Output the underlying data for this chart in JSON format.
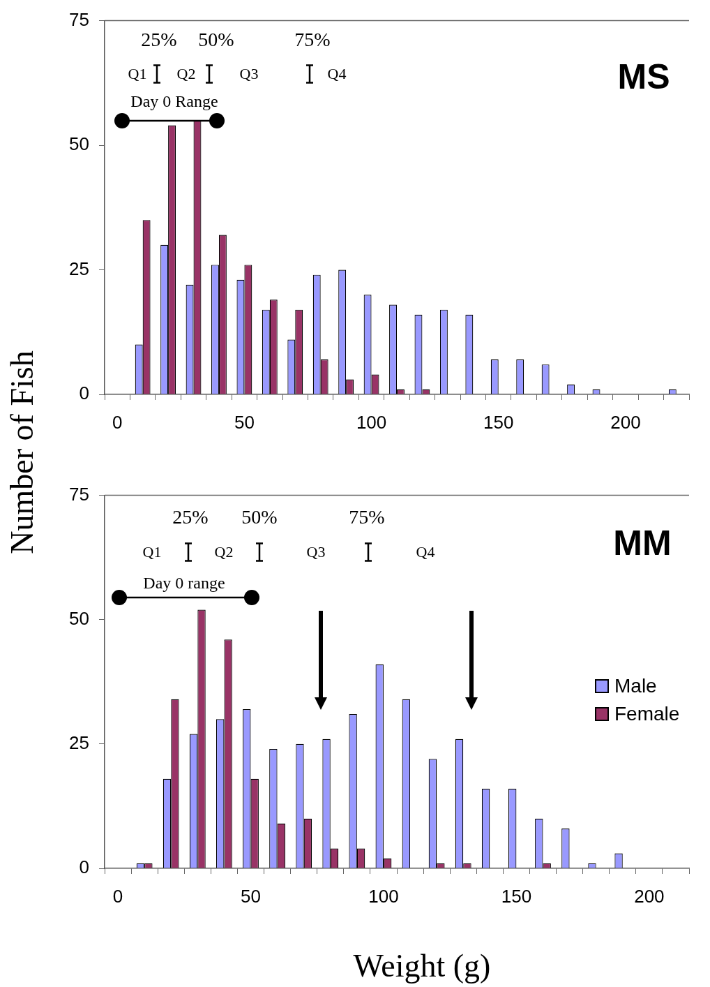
{
  "chart_data": [
    {
      "type": "bar",
      "title": "MS",
      "ylabel": "Number of Fish",
      "categories": [
        "0",
        null,
        null,
        null,
        null,
        "50",
        null,
        null,
        null,
        null,
        "100",
        null,
        null,
        null,
        null,
        "150",
        null,
        null,
        null,
        null,
        "200",
        null,
        null
      ],
      "series": [
        {
          "color": "#9999ff",
          "values": [
            0,
            10,
            30,
            22,
            26,
            23,
            17,
            11,
            24,
            25,
            20,
            18,
            16,
            17,
            16,
            7,
            7,
            6,
            2,
            1,
            0,
            0,
            1
          ]
        },
        {
          "color": "#993366",
          "values": [
            0,
            35,
            54,
            55,
            32,
            26,
            19,
            17,
            7,
            3,
            4,
            1,
            1,
            0,
            0,
            0,
            0,
            0,
            0,
            0,
            0,
            0,
            0
          ]
        }
      ],
      "ylim": [
        0,
        75
      ],
      "yticks": [
        0,
        25,
        50,
        75
      ],
      "grid": false,
      "annotations": [
        "25%",
        "50%",
        "75%",
        "Q1",
        "Q2",
        "Q3",
        "Q4",
        "Day 0 Range"
      ]
    },
    {
      "type": "bar",
      "title": "MM",
      "xlabel": "Weight (g)",
      "categories": [
        "0",
        null,
        null,
        null,
        null,
        "50",
        null,
        null,
        null,
        null,
        "100",
        null,
        null,
        null,
        null,
        "150",
        null,
        null,
        null,
        null,
        "200",
        null
      ],
      "series": [
        {
          "name": "Male",
          "color": "#9999ff",
          "values": [
            0,
            1,
            18,
            27,
            30,
            32,
            24,
            25,
            26,
            31,
            41,
            34,
            22,
            26,
            16,
            16,
            10,
            8,
            1,
            3,
            0,
            0
          ]
        },
        {
          "name": "Female",
          "color": "#993366",
          "values": [
            0,
            1,
            34,
            52,
            46,
            18,
            9,
            10,
            4,
            4,
            2,
            0,
            1,
            1,
            0,
            0,
            1,
            0,
            0,
            0,
            0,
            0
          ]
        }
      ],
      "ylim": [
        0,
        75
      ],
      "yticks": [
        0,
        25,
        50,
        75
      ],
      "grid": false,
      "legend": "right",
      "annotations": [
        "25%",
        "50%",
        "75%",
        "Q1",
        "Q2",
        "Q3",
        "Q4",
        "Day 0 range"
      ]
    }
  ]
}
